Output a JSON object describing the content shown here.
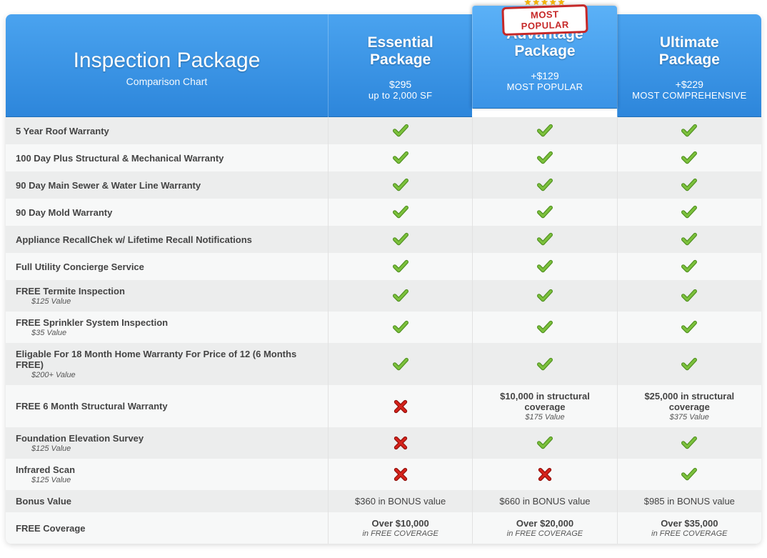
{
  "badge_text": "MOST POPULAR",
  "header": {
    "title": "Inspection Package",
    "subtitle": "Comparison Chart"
  },
  "packages": [
    {
      "name_l1": "Essential",
      "name_l2": "Package",
      "price": "$295",
      "tag": "up to 2,000 SF",
      "featured": false
    },
    {
      "name_l1": "Advantage",
      "name_l2": "Package",
      "price": "+$129",
      "tag": "MOST POPULAR",
      "featured": true
    },
    {
      "name_l1": "Ultimate",
      "name_l2": "Package",
      "price": "+$229",
      "tag": "MOST COMPREHENSIVE",
      "featured": false
    }
  ],
  "rows": [
    {
      "label": "5 Year Roof Warranty",
      "sub": "",
      "cells": [
        {
          "t": "check"
        },
        {
          "t": "check"
        },
        {
          "t": "check"
        }
      ]
    },
    {
      "label": "100 Day Plus Structural & Mechanical Warranty",
      "sub": "",
      "cells": [
        {
          "t": "check"
        },
        {
          "t": "check"
        },
        {
          "t": "check"
        }
      ]
    },
    {
      "label": "90 Day Main Sewer & Water Line Warranty",
      "sub": "",
      "cells": [
        {
          "t": "check"
        },
        {
          "t": "check"
        },
        {
          "t": "check"
        }
      ]
    },
    {
      "label": "90 Day Mold Warranty",
      "sub": "",
      "cells": [
        {
          "t": "check"
        },
        {
          "t": "check"
        },
        {
          "t": "check"
        }
      ]
    },
    {
      "label": "Appliance RecallChek w/ Lifetime Recall Notifications",
      "sub": "",
      "cells": [
        {
          "t": "check"
        },
        {
          "t": "check"
        },
        {
          "t": "check"
        }
      ]
    },
    {
      "label": "Full Utility Concierge Service",
      "sub": "",
      "cells": [
        {
          "t": "check"
        },
        {
          "t": "check"
        },
        {
          "t": "check"
        }
      ]
    },
    {
      "label": "FREE Termite Inspection",
      "sub": "$125 Value",
      "cells": [
        {
          "t": "check"
        },
        {
          "t": "check"
        },
        {
          "t": "check"
        }
      ]
    },
    {
      "label": "FREE Sprinkler System Inspection",
      "sub": "$35 Value",
      "cells": [
        {
          "t": "check"
        },
        {
          "t": "check"
        },
        {
          "t": "check"
        }
      ]
    },
    {
      "label": "Eligable For 18 Month Home Warranty For Price of 12 (6 Months FREE)",
      "sub": "$200+ Value",
      "cells": [
        {
          "t": "check"
        },
        {
          "t": "check"
        },
        {
          "t": "check"
        }
      ]
    },
    {
      "label": "FREE 6 Month Structural Warranty",
      "sub": "",
      "cells": [
        {
          "t": "cross"
        },
        {
          "t": "text",
          "l1": "$10,000 in structural coverage",
          "l2": "$175 Value"
        },
        {
          "t": "text",
          "l1": "$25,000 in structural coverage",
          "l2": "$375 Value"
        }
      ]
    },
    {
      "label": "Foundation Elevation Survey",
      "sub": "$125 Value",
      "cells": [
        {
          "t": "cross"
        },
        {
          "t": "check"
        },
        {
          "t": "check"
        }
      ]
    },
    {
      "label": "Infrared Scan",
      "sub": "$125 Value",
      "cells": [
        {
          "t": "cross"
        },
        {
          "t": "cross"
        },
        {
          "t": "check"
        }
      ]
    },
    {
      "label": "Bonus Value",
      "sub": "",
      "cells": [
        {
          "t": "text",
          "l1": "$360 in BONUS value",
          "l2": ""
        },
        {
          "t": "text",
          "l1": "$660 in BONUS value",
          "l2": ""
        },
        {
          "t": "text",
          "l1": "$985 in BONUS value",
          "l2": ""
        }
      ]
    },
    {
      "label": "FREE Coverage",
      "sub": "",
      "cells": [
        {
          "t": "text",
          "l1": "Over $10,000",
          "l2": "in FREE COVERAGE"
        },
        {
          "t": "text",
          "l1": "Over $20,000",
          "l2": "in FREE COVERAGE"
        },
        {
          "t": "text",
          "l1": "Over $35,000",
          "l2": "in FREE COVERAGE"
        }
      ]
    }
  ],
  "colors": {
    "header_grad_top": "#4aa3ef",
    "header_grad_bottom": "#2d86db",
    "featured_grad_top": "#5bb1f7",
    "featured_grad_bottom": "#3a93e6",
    "row_odd": "#eceded",
    "row_even": "#f7f8f8",
    "check_fill": "#7cc13c",
    "check_stroke": "#4f8f1f",
    "cross_fill": "#d6231c",
    "cross_stroke": "#8e0f0a",
    "badge_red": "#c62828"
  }
}
